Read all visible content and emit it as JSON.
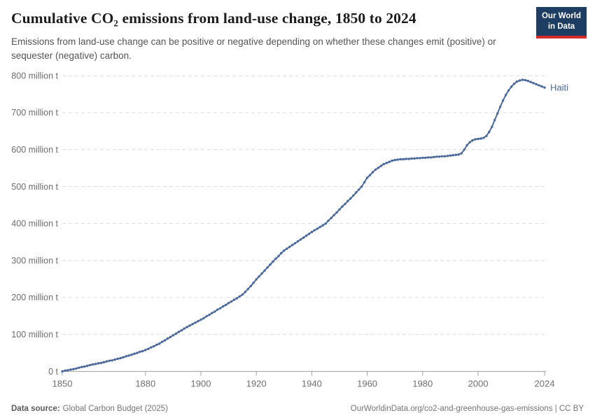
{
  "header": {
    "title": "Cumulative CO₂ emissions from land-use change, 1850 to 2024",
    "subtitle": "Emissions from land-use change can be positive or negative depending on whether these changes emit (positive) or sequester (negative) carbon."
  },
  "logo": {
    "line1": "Our World",
    "line2": "in Data"
  },
  "footer": {
    "source_label": "Data source:",
    "source_value": "Global Carbon Budget (2025)",
    "right_text": "OurWorldinData.org/co2-and-greenhouse-gas-emissions | CC BY"
  },
  "colors": {
    "line": "#4c6a9c",
    "grid": "#dcdcdc",
    "axis": "#a1a1a1",
    "tick_text": "#6e6e6e",
    "logo_bg": "#1d3d63",
    "logo_bar": "#d42b2b"
  },
  "chart_data": {
    "type": "line",
    "title": "Cumulative CO₂ emissions from land-use change, 1850 to 2024",
    "xlabel": "",
    "ylabel": "",
    "xlim": [
      1850,
      2024
    ],
    "ylim": [
      0,
      800
    ],
    "grid": "dashed-horizontal",
    "legend": "end-of-line-label",
    "x_ticks": [
      1850,
      1880,
      1900,
      1920,
      1940,
      1960,
      1980,
      2000,
      2024
    ],
    "y_ticks": [
      {
        "value": 0,
        "label": "0 t"
      },
      {
        "value": 100,
        "label": "100 million t"
      },
      {
        "value": 200,
        "label": "200 million t"
      },
      {
        "value": 300,
        "label": "300 million t"
      },
      {
        "value": 400,
        "label": "400 million t"
      },
      {
        "value": 500,
        "label": "500 million t"
      },
      {
        "value": 600,
        "label": "600 million t"
      },
      {
        "value": 700,
        "label": "700 million t"
      },
      {
        "value": 800,
        "label": "800 million t"
      }
    ],
    "x_start": 1850,
    "x_end": 2024,
    "unit": "million t",
    "series": [
      {
        "name": "Haiti",
        "color": "#4c6a9c",
        "values": [
          0,
          2,
          3,
          5,
          6,
          8,
          10,
          12,
          13,
          15,
          17,
          19,
          20,
          22,
          23,
          25,
          27,
          29,
          30,
          32,
          34,
          36,
          38,
          41,
          43,
          45,
          48,
          50,
          53,
          55,
          58,
          61,
          65,
          68,
          72,
          75,
          80,
          84,
          89,
          93,
          98,
          102,
          107,
          111,
          116,
          120,
          124,
          128,
          132,
          136,
          140,
          144,
          149,
          153,
          158,
          162,
          167,
          171,
          176,
          180,
          185,
          189,
          194,
          198,
          203,
          208,
          215,
          223,
          231,
          240,
          249,
          257,
          265,
          273,
          281,
          289,
          297,
          305,
          312,
          320,
          327,
          332,
          337,
          342,
          347,
          352,
          357,
          362,
          367,
          372,
          377,
          382,
          386,
          391,
          395,
          400,
          408,
          415,
          423,
          430,
          438,
          446,
          453,
          461,
          468,
          476,
          484,
          492,
          500,
          512,
          524,
          531,
          539,
          546,
          551,
          556,
          561,
          564,
          567,
          570,
          572,
          573,
          574,
          574,
          575,
          575,
          576,
          576,
          577,
          577,
          578,
          578,
          579,
          579,
          580,
          581,
          581,
          582,
          582,
          583,
          584,
          585,
          586,
          587,
          590,
          600,
          612,
          620,
          625,
          628,
          629,
          630,
          632,
          637,
          648,
          662,
          680,
          698,
          716,
          733,
          748,
          760,
          770,
          778,
          784,
          787,
          789,
          788,
          786,
          783,
          780,
          777,
          774,
          771,
          768
        ]
      }
    ]
  }
}
